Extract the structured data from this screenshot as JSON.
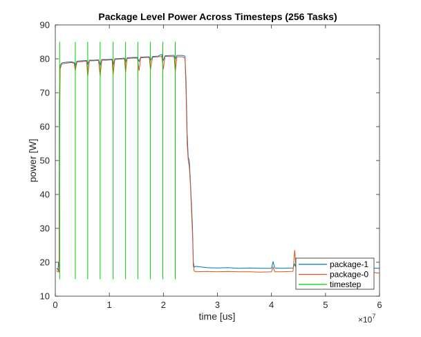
{
  "chart_data": {
    "type": "line",
    "title": "Package Level Power Across Timesteps (256 Tasks)",
    "xlabel": "time [us]",
    "ylabel": "power [W]",
    "x_exponent_label": "×10",
    "x_exponent_power": "7",
    "x_scale": 10000000,
    "xlim": [
      0,
      6
    ],
    "ylim": [
      10,
      90
    ],
    "xticks": [
      0,
      1,
      2,
      3,
      4,
      5,
      6
    ],
    "yticks": [
      10,
      20,
      30,
      40,
      50,
      60,
      70,
      80,
      90
    ],
    "grid": false,
    "legend_position": "bottom-right",
    "series": [
      {
        "name": "package-1",
        "color": "#0072BD",
        "points": [
          [
            0.02,
            18.2
          ],
          [
            0.05,
            17.8
          ],
          [
            0.06,
            20.0
          ],
          [
            0.07,
            18.5
          ],
          [
            0.075,
            67
          ],
          [
            0.08,
            71
          ],
          [
            0.09,
            78
          ],
          [
            0.12,
            78.8
          ],
          [
            0.2,
            79.0
          ],
          [
            0.3,
            79.1
          ],
          [
            0.35,
            78.9
          ],
          [
            0.37,
            77.8
          ],
          [
            0.4,
            79.3
          ],
          [
            0.5,
            79.4
          ],
          [
            0.58,
            79.5
          ],
          [
            0.6,
            78.2
          ],
          [
            0.63,
            79.6
          ],
          [
            0.7,
            79.6
          ],
          [
            0.8,
            79.7
          ],
          [
            0.83,
            78.0
          ],
          [
            0.86,
            79.8
          ],
          [
            0.95,
            79.8
          ],
          [
            1.05,
            79.9
          ],
          [
            1.07,
            78.1
          ],
          [
            1.1,
            80.0
          ],
          [
            1.2,
            80.1
          ],
          [
            1.28,
            80.2
          ],
          [
            1.3,
            79.0
          ],
          [
            1.33,
            80.3
          ],
          [
            1.45,
            80.4
          ],
          [
            1.52,
            80.4
          ],
          [
            1.55,
            79.2
          ],
          [
            1.58,
            80.5
          ],
          [
            1.7,
            80.6
          ],
          [
            1.74,
            80.6
          ],
          [
            1.76,
            79.4
          ],
          [
            1.8,
            80.7
          ],
          [
            1.9,
            80.8
          ],
          [
            1.97,
            81.3
          ],
          [
            2.0,
            79.6
          ],
          [
            2.03,
            80.9
          ],
          [
            2.15,
            81.0
          ],
          [
            2.2,
            81.0
          ],
          [
            2.22,
            79.8
          ],
          [
            2.25,
            81.0
          ],
          [
            2.35,
            81.0
          ],
          [
            2.4,
            80.8
          ],
          [
            2.42,
            73
          ],
          [
            2.44,
            58
          ],
          [
            2.46,
            51
          ],
          [
            2.48,
            50
          ],
          [
            2.5,
            44
          ],
          [
            2.52,
            37
          ],
          [
            2.54,
            30
          ],
          [
            2.555,
            20
          ],
          [
            2.57,
            18.6
          ],
          [
            2.6,
            18.8
          ],
          [
            2.8,
            18.4
          ],
          [
            3.0,
            18.3
          ],
          [
            3.2,
            18.4
          ],
          [
            3.4,
            18.2
          ],
          [
            3.6,
            18.3
          ],
          [
            3.8,
            18.2
          ],
          [
            4.0,
            18.2
          ],
          [
            4.03,
            20.2
          ],
          [
            4.06,
            18.3
          ],
          [
            4.2,
            18.2
          ],
          [
            4.4,
            18.3
          ],
          [
            4.43,
            19.5
          ],
          [
            4.46,
            18.2
          ],
          [
            4.6,
            18.1
          ],
          [
            4.8,
            18.2
          ],
          [
            5.0,
            18.2
          ],
          [
            5.2,
            18.3
          ],
          [
            5.4,
            18.2
          ],
          [
            5.6,
            18.2
          ],
          [
            5.8,
            18.3
          ],
          [
            6.0,
            18.2
          ]
        ]
      },
      {
        "name": "package-0",
        "color": "#D95319",
        "points": [
          [
            0.02,
            17.5
          ],
          [
            0.05,
            17.2
          ],
          [
            0.06,
            18.0
          ],
          [
            0.07,
            17.0
          ],
          [
            0.075,
            42.5
          ],
          [
            0.08,
            60
          ],
          [
            0.09,
            77
          ],
          [
            0.12,
            78.5
          ],
          [
            0.2,
            78.7
          ],
          [
            0.3,
            78.9
          ],
          [
            0.35,
            78.6
          ],
          [
            0.37,
            76.5
          ],
          [
            0.4,
            79.0
          ],
          [
            0.5,
            79.2
          ],
          [
            0.58,
            79.3
          ],
          [
            0.6,
            74.8
          ],
          [
            0.63,
            79.4
          ],
          [
            0.7,
            79.4
          ],
          [
            0.8,
            79.5
          ],
          [
            0.83,
            75.0
          ],
          [
            0.86,
            79.6
          ],
          [
            0.95,
            79.6
          ],
          [
            1.05,
            79.7
          ],
          [
            1.07,
            75.2
          ],
          [
            1.1,
            79.8
          ],
          [
            1.2,
            79.9
          ],
          [
            1.28,
            80.0
          ],
          [
            1.3,
            76.0
          ],
          [
            1.33,
            80.1
          ],
          [
            1.45,
            80.2
          ],
          [
            1.52,
            80.2
          ],
          [
            1.55,
            76.5
          ],
          [
            1.58,
            80.3
          ],
          [
            1.7,
            80.4
          ],
          [
            1.74,
            80.4
          ],
          [
            1.76,
            76.8
          ],
          [
            1.8,
            80.5
          ],
          [
            1.9,
            80.6
          ],
          [
            1.97,
            80.7
          ],
          [
            2.0,
            77.0
          ],
          [
            2.03,
            80.7
          ],
          [
            2.15,
            80.7
          ],
          [
            2.2,
            80.6
          ],
          [
            2.22,
            76.0
          ],
          [
            2.25,
            80.6
          ],
          [
            2.35,
            80.6
          ],
          [
            2.4,
            80.2
          ],
          [
            2.42,
            70
          ],
          [
            2.44,
            55
          ],
          [
            2.46,
            50
          ],
          [
            2.48,
            48
          ],
          [
            2.5,
            43
          ],
          [
            2.52,
            35
          ],
          [
            2.54,
            28
          ],
          [
            2.555,
            19
          ],
          [
            2.57,
            17.4
          ],
          [
            2.6,
            17.2
          ],
          [
            2.8,
            17.3
          ],
          [
            3.0,
            17.2
          ],
          [
            3.2,
            17.3
          ],
          [
            3.4,
            17.2
          ],
          [
            3.6,
            17.2
          ],
          [
            3.8,
            17.1
          ],
          [
            4.0,
            17.2
          ],
          [
            4.03,
            18.6
          ],
          [
            4.06,
            17.2
          ],
          [
            4.2,
            17.2
          ],
          [
            4.4,
            17.3
          ],
          [
            4.43,
            23.6
          ],
          [
            4.46,
            17.5
          ],
          [
            4.6,
            17.2
          ],
          [
            4.8,
            17.2
          ],
          [
            5.0,
            17.3
          ],
          [
            5.2,
            17.1
          ],
          [
            5.4,
            17.2
          ],
          [
            5.6,
            17.2
          ],
          [
            5.8,
            17.2
          ],
          [
            6.0,
            16.8
          ]
        ]
      },
      {
        "name": "timestep",
        "color": "#00CC00",
        "style": "impulse",
        "y_low": 15,
        "y_high": 85,
        "x": [
          0.08,
          0.37,
          0.6,
          0.83,
          1.07,
          1.3,
          1.53,
          1.76,
          1.99,
          2.22
        ]
      }
    ]
  }
}
